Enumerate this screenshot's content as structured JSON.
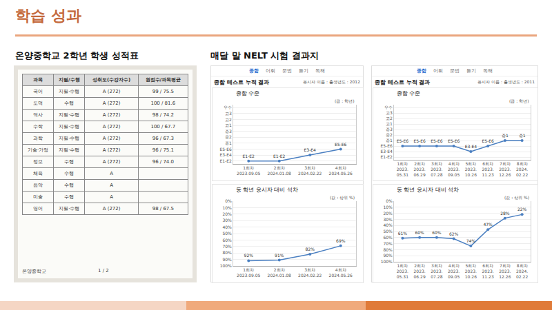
{
  "title": "학습 성과",
  "left": {
    "caption": "온양중학교 2학년 학생 성적표",
    "table": {
      "header": [
        "과목",
        "지필/수행",
        "성취도(수강자수)",
        "원점수/과목평균"
      ],
      "rows": [
        [
          "국어",
          "지필·수행",
          "A (272)",
          "99 / 75.5"
        ],
        [
          "도덕",
          "수행",
          "A (272)",
          "100 / 81.6"
        ],
        [
          "역사",
          "지필·수행",
          "A (272)",
          "98 / 74.2"
        ],
        [
          "수학",
          "지필·수행",
          "A (272)",
          "100 / 67.7"
        ],
        [
          "과학",
          "지필·수행",
          "A (272)",
          "96 / 67.3"
        ],
        [
          "기술·가정",
          "지필·수행",
          "A (272)",
          "96 / 75.1"
        ],
        [
          "정보",
          "수행",
          "A (272)",
          "96 / 74.0"
        ],
        [
          "체육",
          "수행",
          "A",
          ""
        ],
        [
          "음악",
          "수행",
          "A",
          ""
        ],
        [
          "미술",
          "수행",
          "A",
          ""
        ],
        [
          "영어",
          "지필·수행",
          "A (272)",
          "98 / 67.5"
        ]
      ]
    },
    "footer": "온양중학교",
    "page": "1 / 2"
  },
  "right": {
    "caption": "매달 말 NELT 시험 결과지",
    "panels": [
      {
        "tabs": [
          "종합",
          "어휘",
          "문법",
          "듣기",
          "독해"
        ],
        "heading": "종합 테스트 누적 결과",
        "name_label": "응시자 이름 :",
        "birth_label": "출생년도 : 2012"
      },
      {
        "tabs": [
          "종합",
          "어휘",
          "문법",
          "듣기",
          "독해"
        ],
        "heading": "종합 테스트 누적 결과",
        "name_label": "응시자 이름 :",
        "birth_label": "출생년도 : 2011"
      }
    ]
  },
  "chart_data": [
    {
      "type": "line",
      "title": "종합 수준",
      "subtitle": "(급 : 학년)",
      "categories": [
        "1회차 2023.09.05",
        "2회차 2024.01.08",
        "3회차 2024.02.22",
        "4회차 2024.05.26"
      ],
      "values": [
        1,
        1,
        2,
        3
      ],
      "value_labels": [
        "E1-E2",
        "E1-E2",
        "E3-E4",
        "E5-E6"
      ],
      "ylim": [
        0.5,
        10.5
      ],
      "yticks": [
        {
          "value": 1,
          "label": "E1-E2"
        },
        {
          "value": 2,
          "label": "E3-E4"
        },
        {
          "value": 3,
          "label": "E5-E6"
        },
        {
          "value": 4,
          "label": "중1"
        },
        {
          "value": 5,
          "label": "중2"
        },
        {
          "value": 6,
          "label": "중3"
        },
        {
          "value": 7,
          "label": "고1"
        },
        {
          "value": 8,
          "label": "고2"
        },
        {
          "value": 9,
          "label": "고3"
        },
        {
          "value": 10,
          "label": "우수"
        }
      ],
      "color": "#4a7fc1",
      "marker": "circle",
      "data_labels": true,
      "grid": true
    },
    {
      "type": "line",
      "title": "동 학년 응시자 대비 석차",
      "subtitle": "(값 : 상위 %)",
      "categories": [
        "1회차 2023.09.05",
        "2회차 2024.01.08",
        "3회차 2024.02.22",
        "4회차 2024.05.26"
      ],
      "values": [
        92,
        91,
        82,
        69
      ],
      "value_labels": [
        "92%",
        "91%",
        "82%",
        "69%"
      ],
      "ylim": [
        100,
        0
      ],
      "yticks": [
        {
          "value": 0,
          "label": "0%"
        },
        {
          "value": 10,
          "label": "10%"
        },
        {
          "value": 20,
          "label": "20%"
        },
        {
          "value": 30,
          "label": "30%"
        },
        {
          "value": 40,
          "label": "40%"
        },
        {
          "value": 50,
          "label": "50%"
        },
        {
          "value": 60,
          "label": "60%"
        },
        {
          "value": 70,
          "label": "70%"
        },
        {
          "value": 80,
          "label": "80%"
        },
        {
          "value": 90,
          "label": "90%"
        },
        {
          "value": 100,
          "label": "100%"
        }
      ],
      "color": "#4a7fc1",
      "marker": "circle",
      "data_labels": true,
      "grid": true
    },
    {
      "type": "line",
      "title": "종합 수준",
      "subtitle": "(급 : 학년)",
      "categories": [
        "1회차 2023.05.31",
        "2회차 2023.06.29",
        "3회차 2023.07.28",
        "4회차 2023.09.05",
        "5회차 2023.10.26",
        "6회차 2023.11.23",
        "7회차 2023.12.26",
        "8회차 2024.02.22"
      ],
      "values": [
        3,
        3,
        3,
        3,
        2,
        3,
        4,
        4
      ],
      "value_labels": [
        "E5-E6",
        "E5-E6",
        "E5-E6",
        "E5-E6",
        "E3-E4",
        "E5-E6",
        "중1",
        "중1"
      ],
      "ylim": [
        0.5,
        10.5
      ],
      "yticks": [
        {
          "value": 1,
          "label": "E1-E2"
        },
        {
          "value": 2,
          "label": "E3-E4"
        },
        {
          "value": 3,
          "label": "E5-E6"
        },
        {
          "value": 4,
          "label": "중1"
        },
        {
          "value": 5,
          "label": "중2"
        },
        {
          "value": 6,
          "label": "중3"
        },
        {
          "value": 7,
          "label": "고1"
        },
        {
          "value": 8,
          "label": "고2"
        },
        {
          "value": 9,
          "label": "고3"
        },
        {
          "value": 10,
          "label": "우수"
        }
      ],
      "color": "#4a7fc1",
      "marker": "circle",
      "data_labels": true,
      "grid": true
    },
    {
      "type": "line",
      "title": "동 학년 응시자 대비 석차",
      "subtitle": "(값 : 상위 %)",
      "categories": [
        "1회차 2023.05.31",
        "2회차 2023.06.29",
        "3회차 2023.07.28",
        "4회차 2023.09.05",
        "5회차 2023.10.26",
        "6회차 2023.11.23",
        "7회차 2023.12.26",
        "8회차 2024.02.22"
      ],
      "values": [
        61,
        60,
        60,
        62,
        74,
        47,
        28,
        22
      ],
      "value_labels": [
        "61%",
        "60%",
        "60%",
        "62%",
        "74%",
        "47%",
        "28%",
        "22%"
      ],
      "ylim": [
        100,
        0
      ],
      "yticks": [
        {
          "value": 0,
          "label": "0%"
        },
        {
          "value": 10,
          "label": "10%"
        },
        {
          "value": 20,
          "label": "20%"
        },
        {
          "value": 30,
          "label": "30%"
        },
        {
          "value": 40,
          "label": "40%"
        },
        {
          "value": 50,
          "label": "50%"
        },
        {
          "value": 60,
          "label": "60%"
        },
        {
          "value": 70,
          "label": "70%"
        },
        {
          "value": 80,
          "label": "80%"
        },
        {
          "value": 90,
          "label": "90%"
        },
        {
          "value": 100,
          "label": "100%"
        }
      ],
      "color": "#4a7fc1",
      "marker": "circle",
      "data_labels": true,
      "grid": true
    }
  ]
}
